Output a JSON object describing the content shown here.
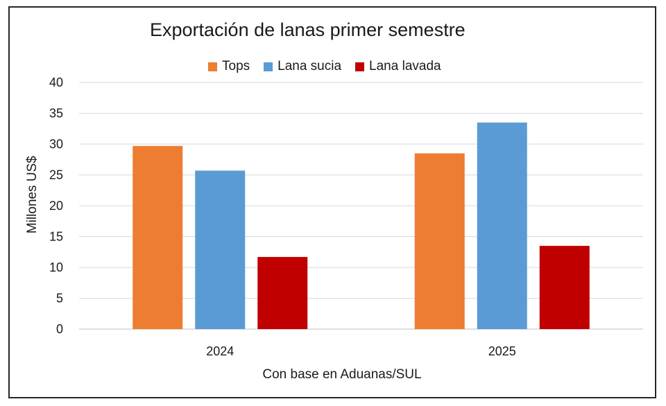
{
  "chart_data": {
    "type": "bar",
    "title": "Exportación de lanas primer semestre",
    "xlabel": "Con base en Aduanas/SUL",
    "ylabel": "Millones US$",
    "categories": [
      "2024",
      "2025"
    ],
    "series": [
      {
        "name": "Tops",
        "values": [
          29.7,
          28.5
        ],
        "color": "#ED7D31"
      },
      {
        "name": "Lana sucia",
        "values": [
          25.7,
          33.5
        ],
        "color": "#5B9BD5"
      },
      {
        "name": "Lana lavada",
        "values": [
          11.7,
          13.5
        ],
        "color": "#C00000"
      }
    ],
    "ylim": [
      0,
      40
    ],
    "yticks": [
      "0",
      "5",
      "10",
      "15",
      "20",
      "25",
      "30",
      "35",
      "40"
    ],
    "grid": true,
    "legend_position": "top"
  }
}
